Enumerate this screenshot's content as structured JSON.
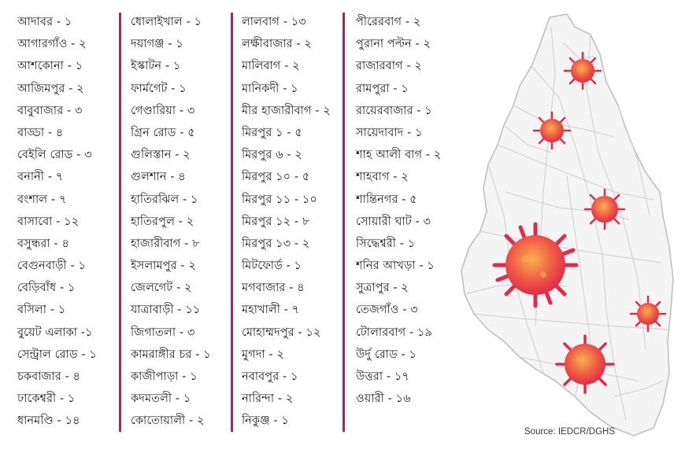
{
  "columns": [
    [
      "আদাবর - ১",
      "আগারগাঁও - ২",
      "আশকোনা - ১",
      "আজিমপুর - ২",
      "বাবুবাজার - ৩",
      "বাড্ডা - ৪",
      "বেইলি রোড - ৩",
      "বনানী - ৭",
      "বংশাল - ৭",
      "বাসাবো - ১২",
      "বসুন্ধরা - ৪",
      "বেগুনবাড়ী - ১",
      "বেড়িবাঁধ - ১",
      "বসিলা - ১",
      "বুয়েট এলাকা -১",
      "সেন্ট্রাল রোড - ১",
      "চকবাজার - ৪",
      "ঢাকেশ্বরী - ১",
      "ধানমণ্ডি - ১৪"
    ],
    [
      "ধোলাইখাল - ১",
      "দয়াগঞ্জ - ১",
      "ইস্কাটন - ১",
      "ফার্মগেট - ১",
      "গেণ্ডারিয়া - ৩",
      "গ্রিন রোড - ৫",
      "গুলিস্তান - ২",
      "গুলশান - ৪",
      "হাতিরঝিল - ১",
      "হাতিরপুল - ২",
      "হাজারীবাগ - ৮",
      "ইসলামপুর - ২",
      "জেলগেট - ২",
      "যাত্রাবাড়ী - ১১",
      "জিগাতলা - ৩",
      "কামরাঙ্গীর চর - ১",
      "কাজীপাড়া - ১",
      "কদমতলী - ১",
      "কোতোয়ালী - ২"
    ],
    [
      "লালবাগ - ১৩",
      "লক্ষীবাজার - ২",
      "মালিবাগ - ২",
      "মানিকদী - ১",
      "মীর হাজারীবাগ - ২",
      "মিরপুর ১ - ৫",
      "মিরপুর ৬ - ২",
      "মিরপুর ১০ - ৫",
      "মিরপুর ১১ - ১০",
      "মিরপুর ১২ - ৮",
      "মিরপুর ১৩ - ২",
      "মিটফোর্ড - ১",
      "মগবাজার - ৪",
      "মহাখালী - ৭",
      "মোহাম্মদপুর - ১২",
      "মুগদা - ২",
      "নবাবপুর - ১",
      "নারিন্দা - ২",
      "নিকুঞ্জ - ১"
    ],
    [
      "পীরেরবাগ - ২",
      "পুরানা পল্টন - ২",
      "রাজারবাগ - ২",
      "রামপুরা - ১",
      "রায়েরবাজার - ১",
      "সায়েদাবাদ - ১",
      "শাহ আলী বাগ - ২",
      "শাহবাগ - ২",
      "শান্তিনগর - ৫",
      "সোয়ারী ঘাট - ৩",
      "সিদ্ধেশ্বরী - ১",
      "শনির আখড়া - ১",
      "সুত্রাপুর - ২",
      "তেজগাঁও - ৩",
      "টোলারবাগ - ১৯",
      "উর্দু রোড - ১",
      "উত্তরা - ১৭",
      "ওয়ারী - ১৬"
    ]
  ],
  "source": "Source: IEDCR/DGHS",
  "colors": {
    "divider": "#c1195a",
    "virus": "#e8334a",
    "virus_light": "#f6a24a"
  },
  "map_icons": [
    "virus-icon",
    "virus-icon",
    "virus-icon",
    "virus-icon",
    "virus-icon",
    "virus-icon"
  ]
}
